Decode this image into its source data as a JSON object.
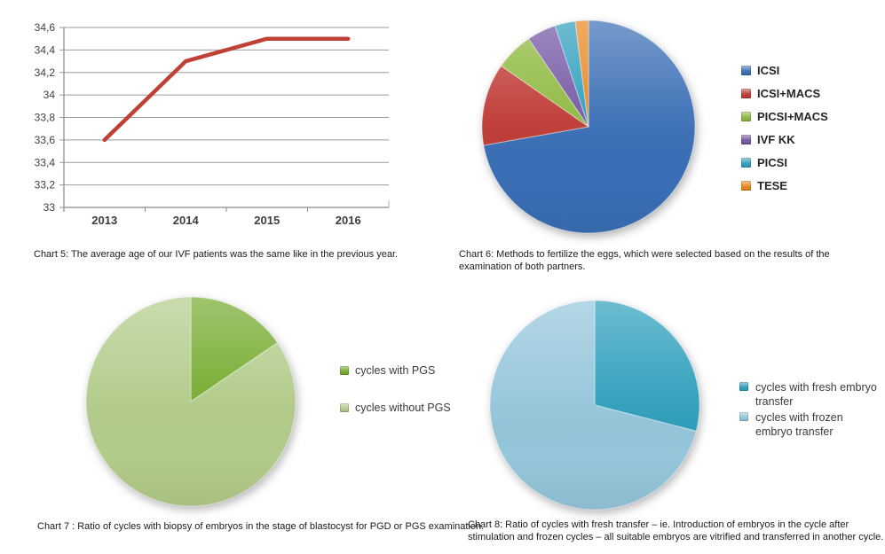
{
  "page": {
    "background": "#ffffff"
  },
  "chart_data": [
    {
      "id": "chart5",
      "type": "line",
      "caption": "Chart 5: The average age of our IVF patients was the same like in the previous year.",
      "x": [
        "2013",
        "2014",
        "2015",
        "2016"
      ],
      "series": [
        {
          "name": "average age of IVF patients",
          "values": [
            33.6,
            34.3,
            34.5,
            34.5
          ],
          "color": "#bf4136"
        }
      ],
      "ylim": [
        33,
        34.6
      ],
      "ytick_step": 0.2,
      "ytick_labels": [
        "33",
        "33,2",
        "33,4",
        "33,6",
        "33,8",
        "34",
        "34,2",
        "34,4",
        "34,6"
      ],
      "grid": true,
      "legend_position": "none"
    },
    {
      "id": "chart6",
      "type": "pie",
      "caption": "Chart 6: Methods to fertilize the eggs, which were selected based on the results of the examination of both partners.",
      "slices": [
        {
          "label": "ICSI",
          "value": 72.2,
          "color": "#3a6eb5"
        },
        {
          "label": "ICSI+MACS",
          "value": 12.5,
          "color": "#bf3a34"
        },
        {
          "label": "PICSI+MACS",
          "value": 5.8,
          "color": "#8db83e"
        },
        {
          "label": "IVF KK",
          "value": 4.4,
          "color": "#7456a3"
        },
        {
          "label": "PICSI",
          "value": 3.1,
          "color": "#2e9ebd"
        },
        {
          "label": "TESE",
          "value": 2.0,
          "color": "#e8871f"
        }
      ],
      "legend_position": "right"
    },
    {
      "id": "chart7",
      "type": "pie",
      "caption": "Chart 7 : Ratio of cycles with biopsy of embryos in the stage of blastocyst for PGD or PGS examination.",
      "slices": [
        {
          "label": "cycles with PGS",
          "value": 15.5,
          "color": "#76ab2f"
        },
        {
          "label": "cycles without PGS",
          "value": 84.5,
          "color": "#b2cc8b"
        }
      ],
      "legend_position": "right"
    },
    {
      "id": "chart8",
      "type": "pie",
      "caption": "Chart 8: Ratio of cycles with fresh transfer – ie. Introduction of embryos in the cycle after stimulation and frozen cycles – all suitable embryos are vitrified and transferred in another cycle.",
      "slices": [
        {
          "label": "cycles with fresh embryo transfer",
          "value": 29,
          "color": "#2e9fbc"
        },
        {
          "label": "cycles with frozen embryo transfer",
          "value": 71,
          "color": "#95c6db"
        }
      ],
      "legend_position": "right"
    }
  ]
}
